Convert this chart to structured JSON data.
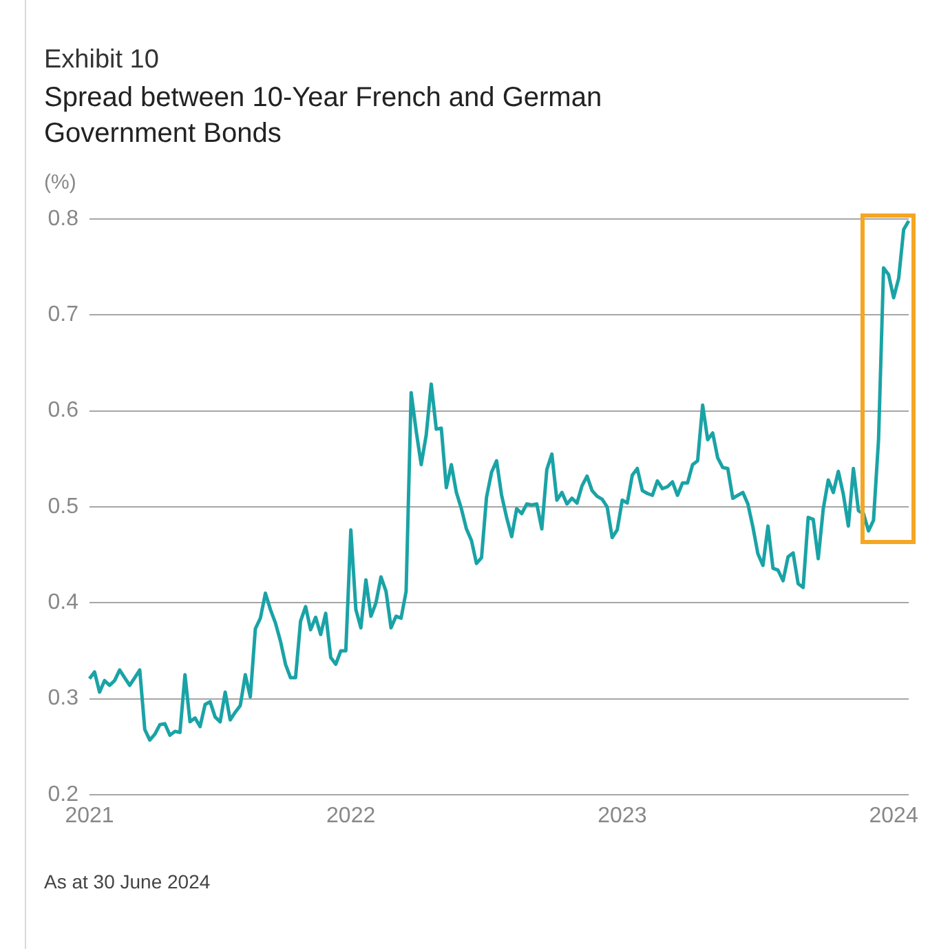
{
  "chart_data": {
    "type": "line",
    "title": "Exhibit 10",
    "subtitle": "Spread between 10-Year French and German Government Bonds",
    "ylabel": "(%)",
    "annotations": [
      "As at 30 June 2024"
    ],
    "categories": [
      "2021",
      null,
      null,
      null,
      null,
      null,
      null,
      null,
      null,
      null,
      null,
      null,
      null,
      null,
      null,
      null,
      null,
      null,
      null,
      null,
      null,
      null,
      null,
      null,
      null,
      null,
      null,
      null,
      null,
      null,
      null,
      null,
      null,
      null,
      null,
      null,
      null,
      null,
      null,
      null,
      null,
      null,
      null,
      null,
      null,
      null,
      null,
      null,
      null,
      null,
      null,
      null,
      "2022",
      null,
      null,
      null,
      null,
      null,
      null,
      null,
      null,
      null,
      null,
      null,
      null,
      null,
      null,
      null,
      null,
      null,
      null,
      null,
      null,
      null,
      null,
      null,
      null,
      null,
      null,
      null,
      null,
      null,
      null,
      null,
      null,
      null,
      null,
      null,
      null,
      null,
      null,
      null,
      null,
      null,
      null,
      null,
      null,
      null,
      null,
      null,
      null,
      null,
      null,
      null,
      null,
      null,
      "2023",
      null,
      null,
      null,
      null,
      null,
      null,
      null,
      null,
      null,
      null,
      null,
      null,
      null,
      null,
      null,
      null,
      null,
      null,
      null,
      null,
      null,
      null,
      null,
      null,
      null,
      null,
      null,
      null,
      null,
      null,
      null,
      null,
      null,
      null,
      null,
      null,
      null,
      null,
      null,
      null,
      null,
      null,
      null,
      null,
      null,
      null,
      null,
      null,
      null,
      null,
      null,
      null,
      null,
      "2024",
      null,
      null,
      null
    ],
    "ylim": [
      0.2,
      0.8
    ],
    "yticks": [
      0.2,
      0.3,
      0.4,
      0.5,
      0.6,
      0.7,
      0.8
    ],
    "grid": "y",
    "marker": "none",
    "line_style": "solid",
    "series": [
      {
        "color": "#1aa3a6",
        "values": [
          0.321,
          0.328,
          0.307,
          0.319,
          0.314,
          0.319,
          0.33,
          0.322,
          0.314,
          0.322,
          0.33,
          0.268,
          0.257,
          0.263,
          0.273,
          0.274,
          0.262,
          0.266,
          0.265,
          0.325,
          0.276,
          0.28,
          0.271,
          0.294,
          0.297,
          0.281,
          0.276,
          0.307,
          0.278,
          0.286,
          0.293,
          0.325,
          0.302,
          0.373,
          0.384,
          0.41,
          0.393,
          0.379,
          0.36,
          0.336,
          0.322,
          0.322,
          0.381,
          0.396,
          0.372,
          0.385,
          0.367,
          0.389,
          0.343,
          0.336,
          0.35,
          0.35,
          0.476,
          0.393,
          0.374,
          0.424,
          0.386,
          0.4,
          0.427,
          0.412,
          0.374,
          0.386,
          0.384,
          0.412,
          0.619,
          0.579,
          0.544,
          0.575,
          0.628,
          0.581,
          0.582,
          0.52,
          0.544,
          0.515,
          0.498,
          0.477,
          0.465,
          0.441,
          0.447,
          0.51,
          0.536,
          0.548,
          0.512,
          0.489,
          0.469,
          0.498,
          0.493,
          0.503,
          0.502,
          0.503,
          0.477,
          0.539,
          0.555,
          0.507,
          0.515,
          0.503,
          0.509,
          0.504,
          0.522,
          0.532,
          0.517,
          0.511,
          0.508,
          0.5,
          0.468,
          0.476,
          0.507,
          0.504,
          0.533,
          0.54,
          0.517,
          0.514,
          0.512,
          0.527,
          0.519,
          0.521,
          0.526,
          0.512,
          0.525,
          0.525,
          0.544,
          0.548,
          0.606,
          0.57,
          0.577,
          0.551,
          0.541,
          0.54,
          0.509,
          0.512,
          0.515,
          0.503,
          0.479,
          0.451,
          0.439,
          0.48,
          0.436,
          0.434,
          0.423,
          0.448,
          0.452,
          0.42,
          0.416,
          0.489,
          0.487,
          0.446,
          0.498,
          0.528,
          0.515,
          0.537,
          0.513,
          0.48,
          0.54,
          0.496,
          0.493,
          0.475,
          0.486,
          0.57,
          0.749,
          0.742,
          0.718,
          0.738,
          0.789,
          0.798
        ]
      }
    ]
  }
}
